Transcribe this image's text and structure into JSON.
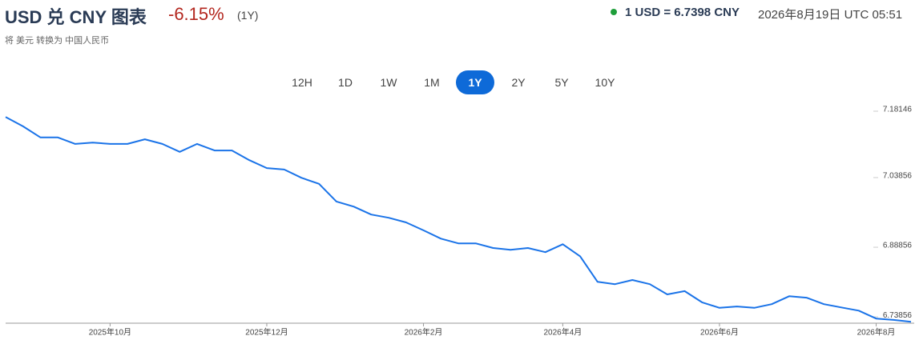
{
  "header": {
    "title": "USD 兑 CNY 图表",
    "change": "-6.15%",
    "period": "(1Y)",
    "subtitle": "将 美元 转换为 中国人民币",
    "rate": "1 USD = 6.7398 CNY",
    "timestamp": "2026年8月19日 UTC 05:51"
  },
  "ranges": {
    "buttons": [
      "12H",
      "1D",
      "1W",
      "1M",
      "1Y",
      "2Y",
      "5Y",
      "10Y"
    ],
    "active": 4
  },
  "chart_data": {
    "type": "line",
    "color": "#1a73e8",
    "categories": [
      null,
      null,
      null,
      null,
      null,
      null,
      "2025年10月",
      null,
      null,
      null,
      null,
      null,
      null,
      null,
      null,
      "2025年12月",
      null,
      null,
      null,
      null,
      null,
      null,
      null,
      null,
      "2026年2月",
      null,
      null,
      null,
      null,
      null,
      null,
      null,
      "2026年4月",
      null,
      null,
      null,
      null,
      null,
      null,
      null,
      null,
      "2026年6月",
      null,
      null,
      null,
      null,
      null,
      null,
      null,
      null,
      "2026年8月",
      null,
      null
    ],
    "values": [
      7.169,
      7.149,
      7.125,
      7.125,
      7.111,
      7.114,
      7.111,
      7.111,
      7.121,
      7.111,
      7.094,
      7.111,
      7.097,
      7.097,
      7.076,
      7.059,
      7.056,
      7.038,
      7.025,
      6.987,
      6.976,
      6.959,
      6.952,
      6.942,
      6.925,
      6.907,
      6.897,
      6.897,
      6.887,
      6.883,
      6.887,
      6.878,
      6.895,
      6.869,
      6.814,
      6.809,
      6.818,
      6.809,
      6.787,
      6.794,
      6.77,
      6.758,
      6.761,
      6.758,
      6.766,
      6.783,
      6.78,
      6.766,
      6.759,
      6.752,
      6.735,
      6.732,
      6.728
    ],
    "ylim": [
      6.725,
      7.197
    ],
    "yticks": [
      7.18146,
      7.03856,
      6.88856,
      6.73856
    ],
    "grid": false
  }
}
